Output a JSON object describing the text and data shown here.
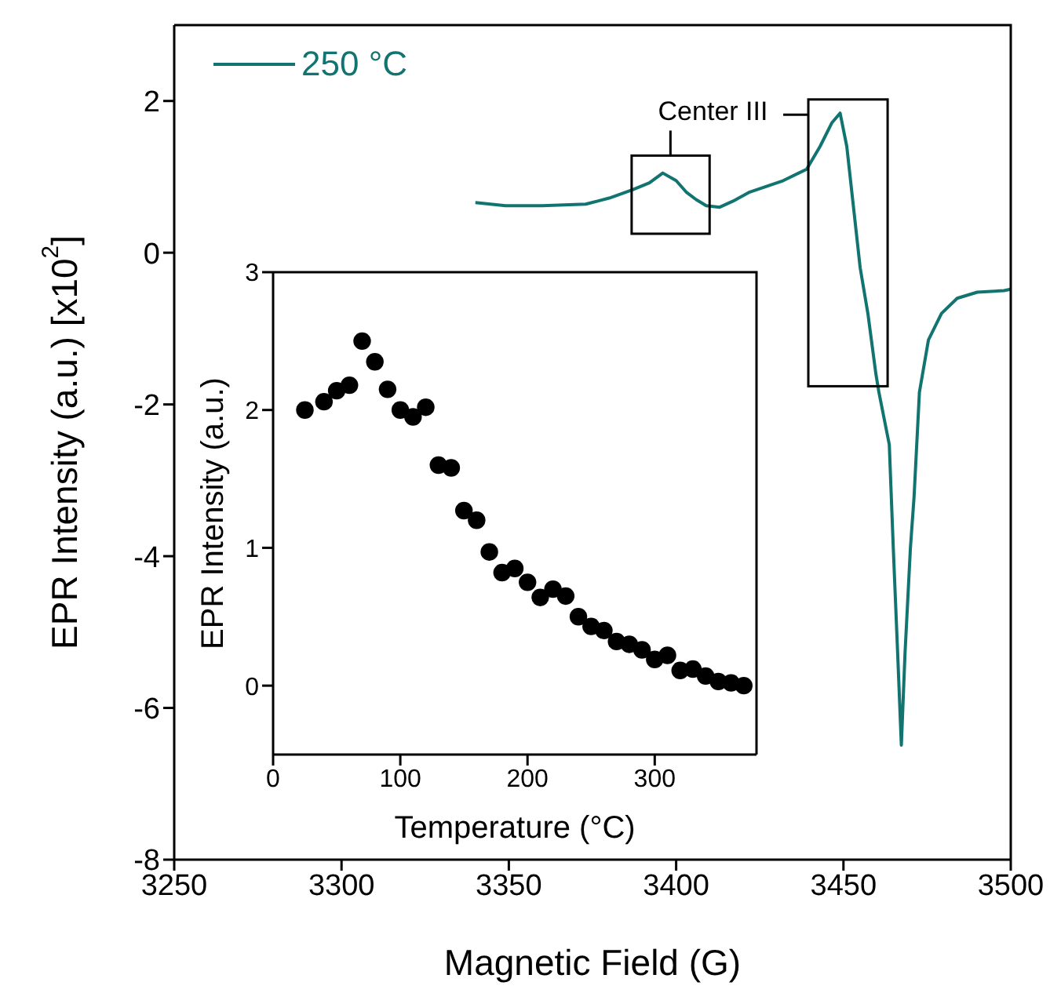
{
  "chart_data": [
    {
      "type": "line",
      "xlabel": "Magnetic Field (G)",
      "ylabel": "EPR Intensity (a.u.) [x10$^{2}$]",
      "xlim": [
        3250,
        3500
      ],
      "ylim": [
        -8,
        3
      ],
      "xticks": [
        3250,
        3300,
        3350,
        3400,
        3450,
        3500
      ],
      "yticks": [
        -8,
        -6,
        -4,
        -2,
        0,
        2
      ],
      "legend": "top left",
      "annotations": [
        "Center III"
      ],
      "series": [
        {
          "name": "250 °C",
          "color": "#127470",
          "x": [
            3340,
            3349,
            3360,
            3373,
            3380,
            3387,
            3392,
            3396,
            3400,
            3403,
            3406,
            3409,
            3413,
            3417,
            3422,
            3432,
            3439,
            3443,
            3446.5,
            3449,
            3451,
            3453,
            3455,
            3457.3,
            3459.7,
            3460.6,
            3463.7,
            3464.9,
            3466.2,
            3467.3,
            3468.4,
            3470,
            3471.1,
            3472.7,
            3475.4,
            3479.3,
            3484,
            3490,
            3498,
            3500
          ],
          "values": [
            0.66,
            0.62,
            0.62,
            0.64,
            0.72,
            0.83,
            0.92,
            1.05,
            0.95,
            0.8,
            0.7,
            0.62,
            0.6,
            0.68,
            0.8,
            0.95,
            1.1,
            1.4,
            1.71,
            1.84,
            1.4,
            0.6,
            -0.2,
            -0.8,
            -1.6,
            -1.84,
            -2.53,
            -3.9,
            -5.28,
            -6.49,
            -5.28,
            -3.9,
            -3.22,
            -1.84,
            -1.15,
            -0.8,
            -0.6,
            -0.52,
            -0.5,
            -0.48
          ]
        }
      ]
    },
    {
      "type": "scatter",
      "xlabel": "Temperature (°C)",
      "ylabel": "EPR Intensity (a.u.)",
      "xlim": [
        0,
        380
      ],
      "ylim": [
        -0.5,
        3
      ],
      "xticks": [
        0,
        100,
        200,
        300
      ],
      "yticks": [
        0,
        1,
        2,
        3
      ],
      "marker": "circle",
      "series": [
        {
          "color": "#000000",
          "x": [
            25,
            40,
            50,
            60,
            70,
            80,
            90,
            100,
            110,
            120,
            130,
            140,
            150,
            160,
            170,
            180,
            190,
            200,
            210,
            220,
            230,
            240,
            250,
            260,
            270,
            280,
            290,
            300,
            310,
            320,
            330,
            340,
            350,
            360,
            370
          ],
          "values": [
            2.0,
            2.06,
            2.14,
            2.18,
            2.5,
            2.35,
            2.15,
            2.0,
            1.95,
            2.02,
            1.6,
            1.58,
            1.27,
            1.2,
            0.97,
            0.82,
            0.85,
            0.75,
            0.64,
            0.7,
            0.65,
            0.5,
            0.43,
            0.4,
            0.32,
            0.3,
            0.26,
            0.19,
            0.22,
            0.11,
            0.12,
            0.07,
            0.03,
            0.02,
            0.0
          ]
        }
      ]
    }
  ]
}
